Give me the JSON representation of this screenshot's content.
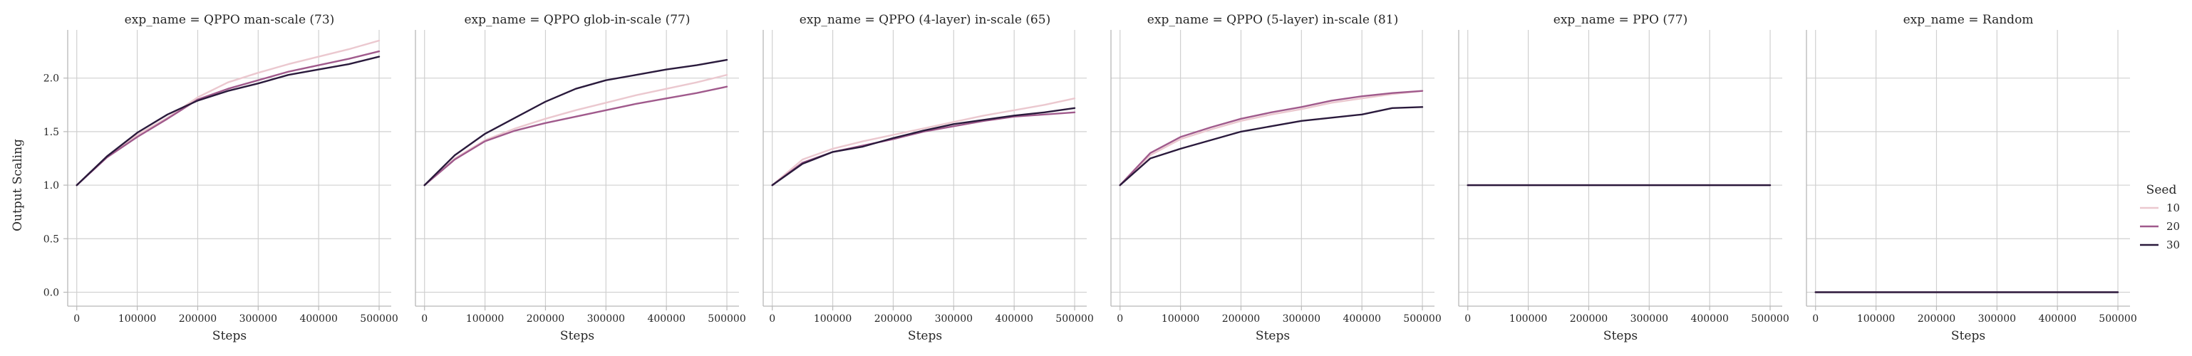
{
  "chart_data": {
    "type": "line",
    "facet_var": "exp_name",
    "xlabel": "Steps",
    "ylabel": "Output Scaling",
    "xlim": [
      -15000,
      520000
    ],
    "ylim": [
      -0.13,
      2.45
    ],
    "xticks": [
      0,
      100000,
      200000,
      300000,
      400000,
      500000
    ],
    "yticks": [
      0.0,
      0.5,
      1.0,
      1.5,
      2.0
    ],
    "grid": true,
    "legend": {
      "title": "Seed",
      "placement": "right",
      "entries": [
        {
          "label": "10",
          "color": "#ebc8cf"
        },
        {
          "label": "20",
          "color": "#a05a8c"
        },
        {
          "label": "30",
          "color": "#2a1a3c"
        }
      ]
    },
    "panels": [
      {
        "title": "exp_name = QPPO man-scale (73)",
        "x": [
          0,
          50000,
          100000,
          150000,
          200000,
          250000,
          300000,
          350000,
          400000,
          450000,
          500000
        ],
        "series": [
          {
            "name": "10",
            "values": [
              1.0,
              1.27,
              1.47,
              1.63,
              1.82,
              1.96,
              2.05,
              2.13,
              2.2,
              2.27,
              2.35
            ]
          },
          {
            "name": "20",
            "values": [
              1.0,
              1.26,
              1.45,
              1.62,
              1.8,
              1.9,
              1.98,
              2.06,
              2.12,
              2.18,
              2.25
            ]
          },
          {
            "name": "30",
            "values": [
              1.0,
              1.27,
              1.49,
              1.66,
              1.79,
              1.88,
              1.95,
              2.03,
              2.08,
              2.13,
              2.2
            ]
          }
        ]
      },
      {
        "title": "exp_name = QPPO glob-in-scale (77)",
        "x": [
          0,
          50000,
          100000,
          150000,
          200000,
          250000,
          300000,
          350000,
          400000,
          450000,
          500000
        ],
        "series": [
          {
            "name": "10",
            "values": [
              1.0,
              1.25,
              1.42,
              1.53,
              1.62,
              1.7,
              1.77,
              1.84,
              1.9,
              1.96,
              2.03
            ]
          },
          {
            "name": "20",
            "values": [
              1.0,
              1.24,
              1.41,
              1.51,
              1.58,
              1.64,
              1.7,
              1.76,
              1.81,
              1.86,
              1.92
            ]
          },
          {
            "name": "30",
            "values": [
              1.0,
              1.28,
              1.48,
              1.63,
              1.78,
              1.9,
              1.98,
              2.03,
              2.08,
              2.12,
              2.17
            ]
          }
        ]
      },
      {
        "title": "exp_name = QPPO (4-layer) in-scale (65)",
        "x": [
          0,
          50000,
          100000,
          150000,
          200000,
          250000,
          300000,
          350000,
          400000,
          450000,
          500000
        ],
        "series": [
          {
            "name": "10",
            "values": [
              1.0,
              1.24,
              1.34,
              1.41,
              1.47,
              1.53,
              1.59,
              1.65,
              1.7,
              1.75,
              1.81
            ]
          },
          {
            "name": "20",
            "values": [
              1.0,
              1.21,
              1.31,
              1.37,
              1.43,
              1.5,
              1.55,
              1.6,
              1.64,
              1.66,
              1.68
            ]
          },
          {
            "name": "30",
            "values": [
              1.0,
              1.2,
              1.31,
              1.36,
              1.44,
              1.51,
              1.57,
              1.61,
              1.65,
              1.68,
              1.72
            ]
          }
        ]
      },
      {
        "title": "exp_name = QPPO (5-layer) in-scale (81)",
        "x": [
          0,
          50000,
          100000,
          150000,
          200000,
          250000,
          300000,
          350000,
          400000,
          450000,
          500000
        ],
        "series": [
          {
            "name": "10",
            "values": [
              1.0,
              1.28,
              1.43,
              1.52,
              1.6,
              1.66,
              1.71,
              1.77,
              1.81,
              1.85,
              1.88
            ]
          },
          {
            "name": "20",
            "values": [
              1.0,
              1.3,
              1.45,
              1.54,
              1.62,
              1.68,
              1.73,
              1.79,
              1.83,
              1.86,
              1.88
            ]
          },
          {
            "name": "30",
            "values": [
              1.0,
              1.25,
              1.34,
              1.42,
              1.5,
              1.55,
              1.6,
              1.63,
              1.66,
              1.72,
              1.73
            ]
          }
        ]
      },
      {
        "title": "exp_name = PPO (77)",
        "x": [
          0,
          500000
        ],
        "series": [
          {
            "name": "10",
            "values": [
              1.0,
              1.0
            ]
          },
          {
            "name": "20",
            "values": [
              1.0,
              1.0
            ]
          },
          {
            "name": "30",
            "values": [
              1.0,
              1.0
            ]
          }
        ]
      },
      {
        "title": "exp_name = Random",
        "x": [
          0,
          500000
        ],
        "series": [
          {
            "name": "10",
            "values": [
              0.0,
              0.0
            ]
          },
          {
            "name": "20",
            "values": [
              0.0,
              0.0
            ]
          },
          {
            "name": "30",
            "values": [
              0.0,
              0.0
            ]
          }
        ]
      }
    ]
  }
}
